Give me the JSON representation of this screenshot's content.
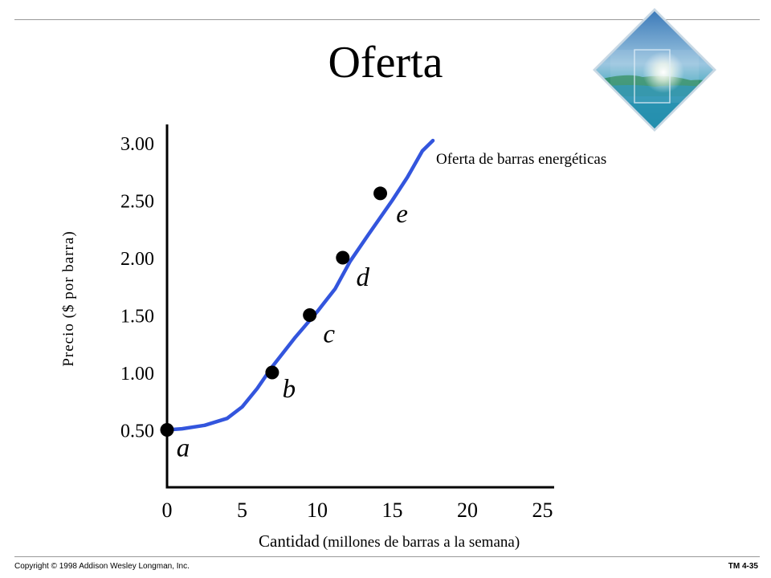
{
  "header": {
    "title": "Oferta"
  },
  "footer": {
    "copyright": "Copyright © 1998 Addison Wesley Longman, Inc.",
    "slide_id": "TM 4-35"
  },
  "decoration": {
    "icon": "ocean-sunburst-diamond-icon"
  },
  "chart_data": {
    "type": "line",
    "ylabel": "Precio  ($ por barra)",
    "xlabel": "Cantidad",
    "xlabel_sub": "(millones de barras a la semana)",
    "x_ticks": [
      "0",
      "5",
      "10",
      "15",
      "20",
      "25"
    ],
    "x_tick_values": [
      0,
      5,
      10,
      15,
      20,
      25
    ],
    "y_ticks": [
      "0.50",
      "1.00",
      "1.50",
      "2.00",
      "2.50",
      "3.00"
    ],
    "y_tick_values": [
      0.5,
      1.0,
      1.5,
      2.0,
      2.5,
      3.0
    ],
    "xlim": [
      0,
      25
    ],
    "ylim": [
      -0.05,
      3.2
    ],
    "series": [
      {
        "name": "Oferta de barras energéticas",
        "color": "#3355dd",
        "x": [
          0,
          1,
          2.5,
          4,
          5,
          6,
          7,
          8.5,
          10,
          11.2,
          12.2,
          13.4,
          15,
          16,
          17,
          17.7
        ],
        "y": [
          0.5,
          0.51,
          0.54,
          0.6,
          0.7,
          0.86,
          1.05,
          1.3,
          1.53,
          1.73,
          1.97,
          2.2,
          2.5,
          2.7,
          2.93,
          3.02
        ]
      }
    ],
    "points": [
      {
        "label": "a",
        "x": 0,
        "y": 0.5
      },
      {
        "label": "b",
        "x": 7,
        "y": 1.0
      },
      {
        "label": "c",
        "x": 9.5,
        "y": 1.5
      },
      {
        "label": "d",
        "x": 11.7,
        "y": 2.0
      },
      {
        "label": "e",
        "x": 14.2,
        "y": 2.56
      }
    ],
    "marker_color": "#000000"
  }
}
